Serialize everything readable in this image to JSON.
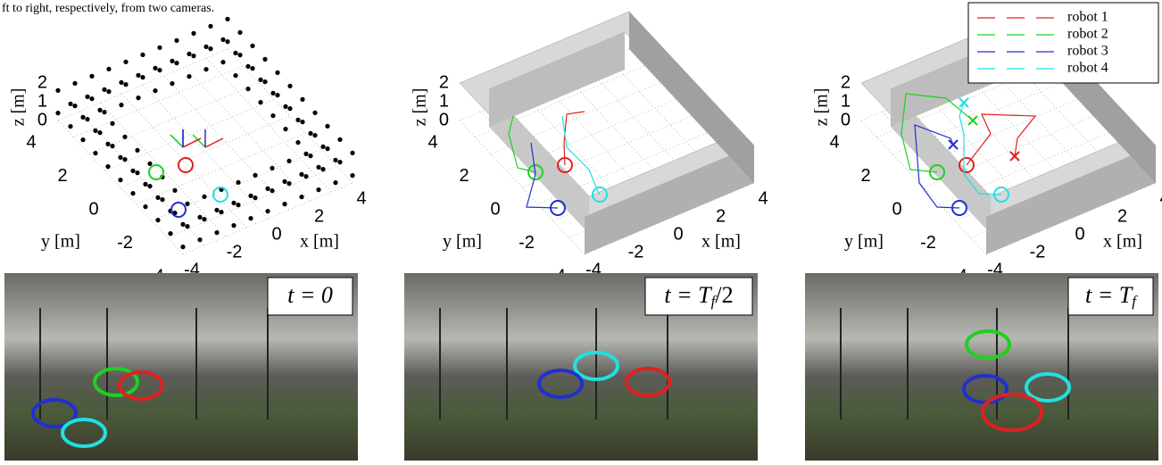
{
  "caption_fragment": "ft to right, respectively, from two cameras.",
  "axes": {
    "z_label": "z [m]",
    "y_label": "y [m]",
    "x_label": "x [m]",
    "z_ticks": [
      "0",
      "1",
      "2"
    ],
    "y_ticks": [
      "-4",
      "-2",
      "0",
      "2",
      "4"
    ],
    "x_ticks": [
      "-4",
      "-2",
      "0",
      "2",
      "4"
    ]
  },
  "legend": [
    {
      "name": "robot 1",
      "color": "#e02020"
    },
    {
      "name": "robot 2",
      "color": "#20d020"
    },
    {
      "name": "robot 3",
      "color": "#2030d0"
    },
    {
      "name": "robot 4",
      "color": "#20e0e0"
    }
  ],
  "panels": [
    {
      "time_label": {
        "main": "t = 0"
      }
    },
    {
      "time_label": {
        "main": "t = T",
        "sub": "f",
        "rest": "/2"
      }
    },
    {
      "time_label": {
        "main": "t = T",
        "sub": "f"
      }
    }
  ]
}
